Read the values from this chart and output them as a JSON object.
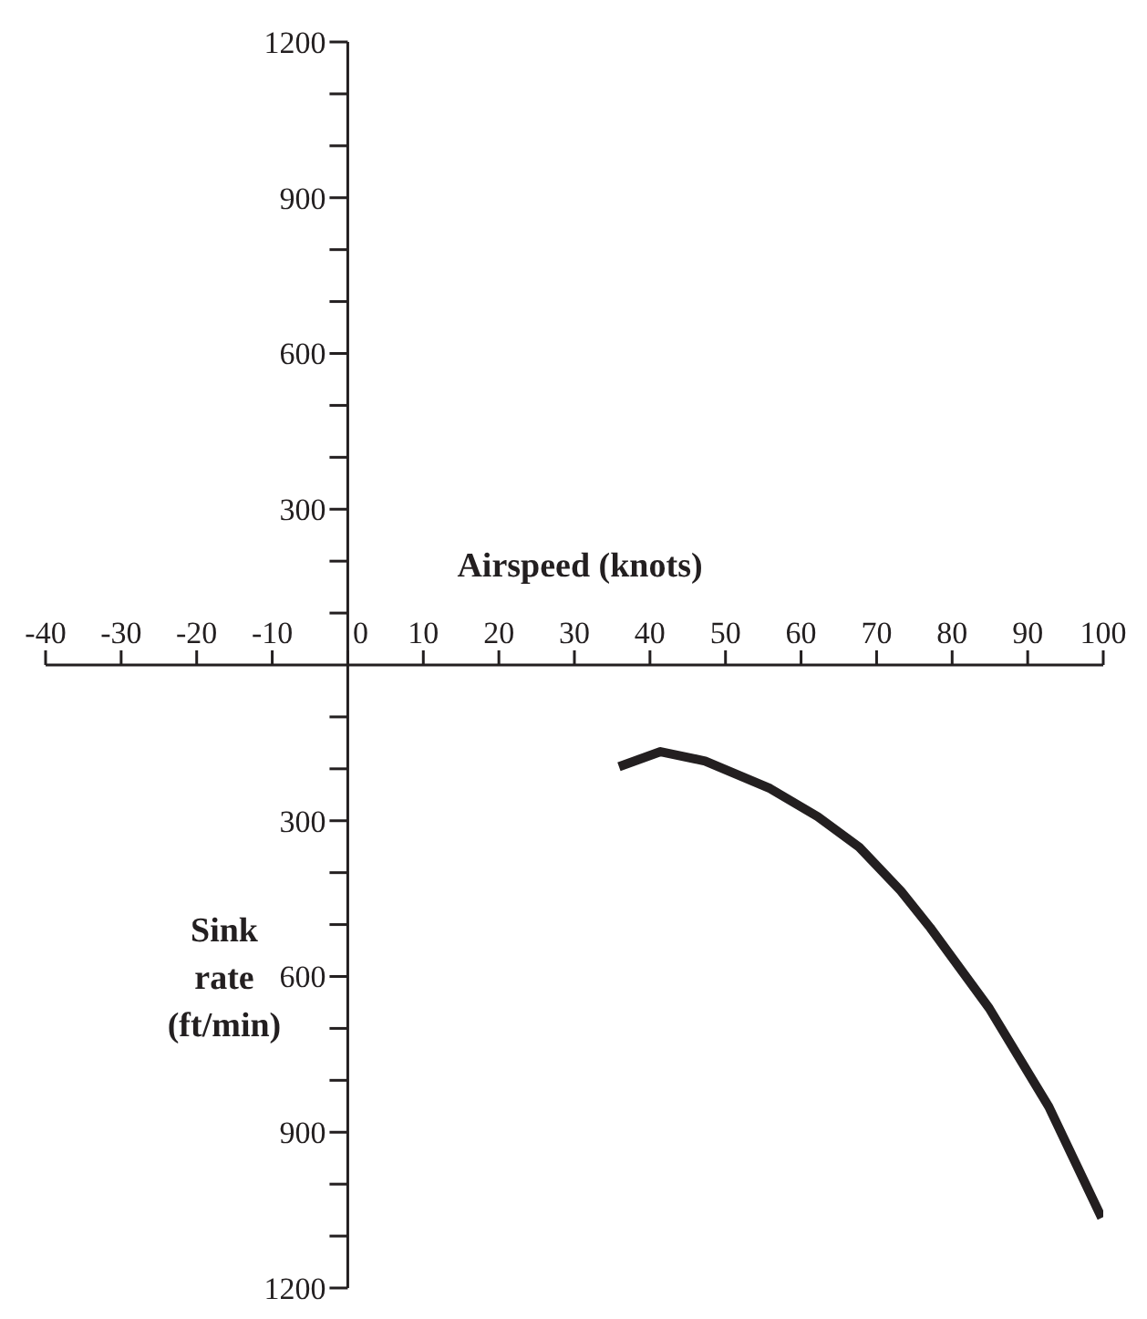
{
  "chart_data": {
    "type": "line",
    "xlabel": "Airspeed (knots)",
    "ylabel": "Sink rate (ft/min)",
    "x": [
      35.9,
      41.4,
      47.3,
      55.9,
      62.2,
      67.7,
      73.2,
      77.1,
      84.9,
      92.8,
      99.8
    ],
    "series": [
      {
        "color": "#231f20",
        "values": [
          -196,
          -167,
          -185,
          -238,
          -292,
          -351,
          -435,
          -506,
          -661,
          -851,
          -1065
        ]
      }
    ],
    "xlim": [
      -40,
      100
    ],
    "xticks": [
      -40,
      -30,
      -20,
      -10,
      0,
      10,
      20,
      30,
      40,
      50,
      60,
      70,
      80,
      90,
      100
    ],
    "ylim": [
      -1200,
      1200
    ],
    "yticks": [
      {
        "value": 1200,
        "label": "1200"
      },
      {
        "value": 1100,
        "label": null
      },
      {
        "value": 1000,
        "label": null
      },
      {
        "value": 900,
        "label": "900"
      },
      {
        "value": 800,
        "label": null
      },
      {
        "value": 700,
        "label": null
      },
      {
        "value": 600,
        "label": "600"
      },
      {
        "value": 500,
        "label": null
      },
      {
        "value": 400,
        "label": null
      },
      {
        "value": 300,
        "label": "300"
      },
      {
        "value": 200,
        "label": null
      },
      {
        "value": 100,
        "label": null
      },
      {
        "value": -100,
        "label": null
      },
      {
        "value": -200,
        "label": null
      },
      {
        "value": -300,
        "label": "300"
      },
      {
        "value": -400,
        "label": null
      },
      {
        "value": -500,
        "label": null
      },
      {
        "value": -600,
        "label": "600"
      },
      {
        "value": -700,
        "label": null
      },
      {
        "value": -800,
        "label": null
      },
      {
        "value": -900,
        "label": "900"
      },
      {
        "value": -1000,
        "label": null
      },
      {
        "value": -1100,
        "label": null
      },
      {
        "value": -1200,
        "label": "1200"
      }
    ],
    "grid": false,
    "legend": false,
    "marker": "none",
    "line_style": "solid"
  }
}
